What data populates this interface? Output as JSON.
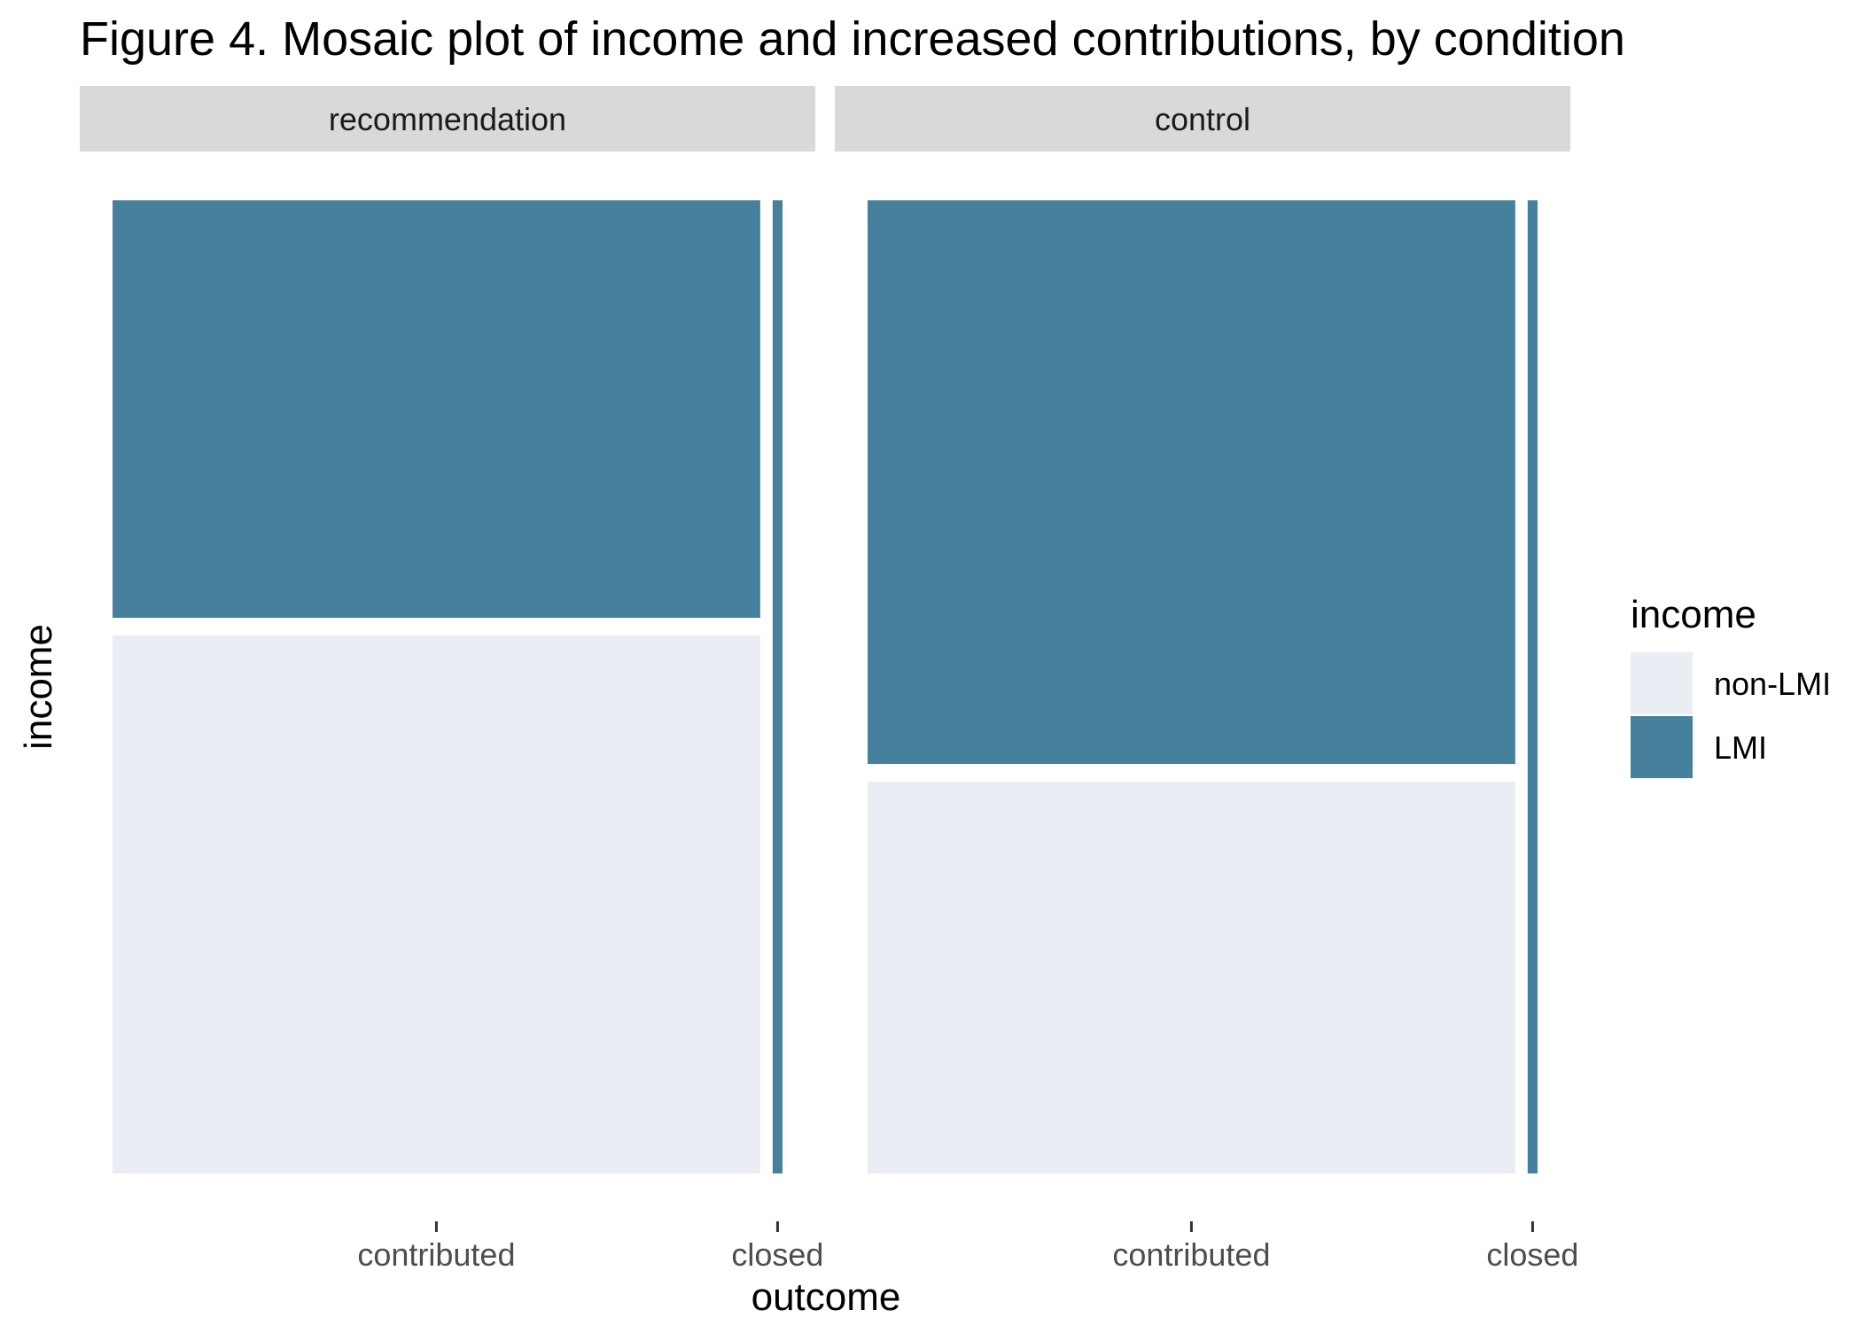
{
  "chart_data": {
    "type": "mosaic",
    "title": "Figure 4. Mosaic plot of income and increased contributions, by condition",
    "xlabel": "outcome",
    "ylabel": "income",
    "facets": [
      {
        "name": "recommendation",
        "categories": [
          {
            "name": "contributed",
            "width_share": 0.985,
            "segments": {
              "non-LMI": 0.563,
              "LMI": 0.437
            }
          },
          {
            "name": "closed",
            "width_share": 0.015,
            "segments": {
              "non-LMI": 0.0,
              "LMI": 1.0
            }
          }
        ]
      },
      {
        "name": "control",
        "categories": [
          {
            "name": "contributed",
            "width_share": 0.985,
            "segments": {
              "non-LMI": 0.41,
              "LMI": 0.59
            }
          },
          {
            "name": "closed",
            "width_share": 0.015,
            "segments": {
              "non-LMI": 0.0,
              "LMI": 1.0
            }
          }
        ]
      }
    ],
    "legend": {
      "title": "income",
      "position": "right",
      "entries": [
        {
          "label": "non-LMI",
          "color": "#eaedf4"
        },
        {
          "label": "LMI",
          "color": "#46809c"
        }
      ]
    },
    "colors": {
      "non-LMI": "#eaedf4",
      "LMI": "#46809c",
      "strip": "#d9d9d9"
    },
    "grid": false
  }
}
